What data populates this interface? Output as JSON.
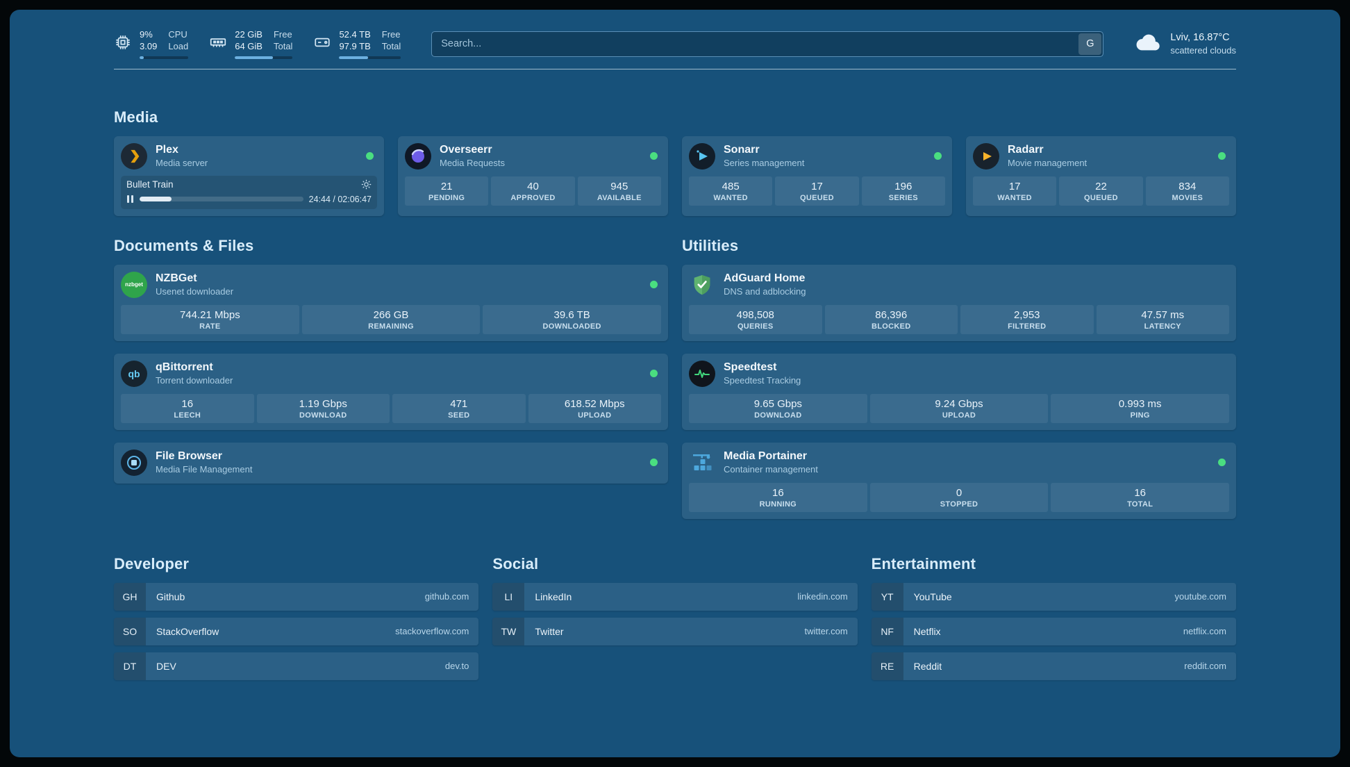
{
  "topbar": {
    "cpu": {
      "v1": "9%",
      "v2": "3.09",
      "l1": "CPU",
      "l2": "Load",
      "pct": 9
    },
    "mem": {
      "v1": "22 GiB",
      "v2": "64 GiB",
      "l1": "Free",
      "l2": "Total",
      "pct": 66
    },
    "disk": {
      "v1": "52.4 TB",
      "v2": "97.9 TB",
      "l1": "Free",
      "l2": "Total",
      "pct": 47
    },
    "search": {
      "placeholder": "Search...",
      "button": "G"
    },
    "weather": {
      "location": "Lviv, 16.87°C",
      "condition": "scattered clouds"
    }
  },
  "sections": {
    "media": "Media",
    "documents": "Documents & Files",
    "utilities": "Utilities",
    "developer": "Developer",
    "social": "Social",
    "entertainment": "Entertainment"
  },
  "services": {
    "plex": {
      "name": "Plex",
      "desc": "Media server",
      "media_title": "Bullet Train",
      "time": "24:44 / 02:06:47",
      "progress": 19.5
    },
    "overseerr": {
      "name": "Overseerr",
      "desc": "Media Requests",
      "stats": [
        {
          "v": "21",
          "l": "PENDING"
        },
        {
          "v": "40",
          "l": "APPROVED"
        },
        {
          "v": "945",
          "l": "AVAILABLE"
        }
      ]
    },
    "sonarr": {
      "name": "Sonarr",
      "desc": "Series management",
      "stats": [
        {
          "v": "485",
          "l": "WANTED"
        },
        {
          "v": "17",
          "l": "QUEUED"
        },
        {
          "v": "196",
          "l": "SERIES"
        }
      ]
    },
    "radarr": {
      "name": "Radarr",
      "desc": "Movie management",
      "stats": [
        {
          "v": "17",
          "l": "WANTED"
        },
        {
          "v": "22",
          "l": "QUEUED"
        },
        {
          "v": "834",
          "l": "MOVIES"
        }
      ]
    },
    "nzbget": {
      "name": "NZBGet",
      "desc": "Usenet downloader",
      "icon_text": "nzbget",
      "stats": [
        {
          "v": "744.21 Mbps",
          "l": "RATE"
        },
        {
          "v": "266 GB",
          "l": "REMAINING"
        },
        {
          "v": "39.6 TB",
          "l": "DOWNLOADED"
        }
      ]
    },
    "qbittorrent": {
      "name": "qBittorrent",
      "desc": "Torrent downloader",
      "icon_text": "qb",
      "stats": [
        {
          "v": "16",
          "l": "LEECH"
        },
        {
          "v": "1.19 Gbps",
          "l": "DOWNLOAD"
        },
        {
          "v": "471",
          "l": "SEED"
        },
        {
          "v": "618.52 Mbps",
          "l": "UPLOAD"
        }
      ]
    },
    "filebrowser": {
      "name": "File Browser",
      "desc": "Media File Management"
    },
    "adguard": {
      "name": "AdGuard Home",
      "desc": "DNS and adblocking",
      "stats": [
        {
          "v": "498,508",
          "l": "QUERIES"
        },
        {
          "v": "86,396",
          "l": "BLOCKED"
        },
        {
          "v": "2,953",
          "l": "FILTERED"
        },
        {
          "v": "47.57 ms",
          "l": "LATENCY"
        }
      ]
    },
    "speedtest": {
      "name": "Speedtest",
      "desc": "Speedtest Tracking",
      "stats": [
        {
          "v": "9.65 Gbps",
          "l": "DOWNLOAD"
        },
        {
          "v": "9.24 Gbps",
          "l": "UPLOAD"
        },
        {
          "v": "0.993 ms",
          "l": "PING"
        }
      ]
    },
    "portainer": {
      "name": "Media Portainer",
      "desc": "Container management",
      "stats": [
        {
          "v": "16",
          "l": "RUNNING"
        },
        {
          "v": "0",
          "l": "STOPPED"
        },
        {
          "v": "16",
          "l": "TOTAL"
        }
      ]
    }
  },
  "bookmarks": {
    "developer": [
      {
        "abbr": "GH",
        "name": "Github",
        "domain": "github.com"
      },
      {
        "abbr": "SO",
        "name": "StackOverflow",
        "domain": "stackoverflow.com"
      },
      {
        "abbr": "DT",
        "name": "DEV",
        "domain": "dev.to"
      }
    ],
    "social": [
      {
        "abbr": "LI",
        "name": "LinkedIn",
        "domain": "linkedin.com"
      },
      {
        "abbr": "TW",
        "name": "Twitter",
        "domain": "twitter.com"
      }
    ],
    "entertainment": [
      {
        "abbr": "YT",
        "name": "YouTube",
        "domain": "youtube.com"
      },
      {
        "abbr": "NF",
        "name": "Netflix",
        "domain": "netflix.com"
      },
      {
        "abbr": "RE",
        "name": "Reddit",
        "domain": "reddit.com"
      }
    ]
  }
}
